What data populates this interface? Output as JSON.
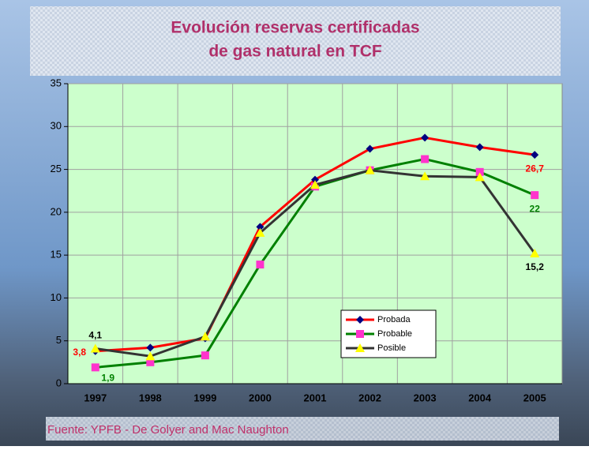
{
  "chart_data": {
    "type": "line",
    "title": [
      "Evolución reservas certificadas",
      "de gas natural en TCF"
    ],
    "source": "Fuente: YPFB - De Golyer and Mac Naughton",
    "categories": [
      "1997",
      "1998",
      "1999",
      "2000",
      "2001",
      "2002",
      "2003",
      "2004",
      "2005"
    ],
    "series": [
      {
        "name": "Probada",
        "color": "#ff0000",
        "marker": "diamond",
        "marker_color": "#000080",
        "label_color": "#ff0000",
        "values": [
          3.8,
          4.2,
          5.3,
          18.3,
          23.8,
          27.4,
          28.7,
          27.6,
          26.7
        ],
        "value_labels": [
          "3,8",
          null,
          null,
          null,
          null,
          null,
          null,
          null,
          "26,7"
        ]
      },
      {
        "name": "Probable",
        "color": "#008000",
        "marker": "square",
        "marker_color": "#ff33cc",
        "label_color": "#008000",
        "values": [
          1.9,
          2.5,
          3.3,
          13.9,
          23.0,
          24.9,
          26.2,
          24.7,
          22
        ],
        "value_labels": [
          "1,9",
          null,
          null,
          null,
          null,
          null,
          null,
          null,
          "22"
        ]
      },
      {
        "name": "Posible",
        "color": "#333333",
        "marker": "triangle",
        "marker_color": "#ffff00",
        "label_color": "#000000",
        "values": [
          4.1,
          3.2,
          5.5,
          17.6,
          23.2,
          24.9,
          24.2,
          24.1,
          15.2
        ],
        "value_labels": [
          "4,1",
          null,
          null,
          null,
          null,
          null,
          null,
          null,
          "15,2"
        ]
      }
    ],
    "ylim": [
      0,
      35
    ],
    "yticks": [
      0,
      5,
      10,
      15,
      20,
      25,
      30,
      35
    ],
    "grid": true,
    "plot_background": "#ccffcc"
  }
}
